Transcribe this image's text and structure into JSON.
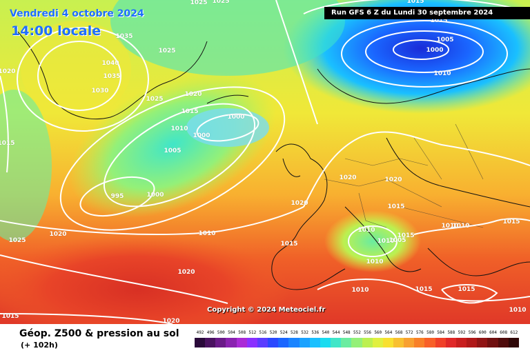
{
  "header": {
    "date": "Vendredi 4 octobre 2024",
    "time": "14:00 locale",
    "run": "Run GFS 6 Z du Lundi 30 septembre 2024"
  },
  "copyright": "Copyright © 2024 Meteociel.fr",
  "legend": {
    "title": "Géop. Z500 & pression au sol",
    "subtitle": "(+ 102h)",
    "scale_values": [
      "492",
      "496",
      "500",
      "504",
      "508",
      "512",
      "516",
      "520",
      "524",
      "528",
      "532",
      "536",
      "540",
      "544",
      "548",
      "552",
      "556",
      "560",
      "564",
      "568",
      "572",
      "576",
      "580",
      "584",
      "588",
      "592",
      "596",
      "600",
      "604",
      "608",
      "612"
    ],
    "scale_colors": [
      "#2a0a3a",
      "#4a1260",
      "#6a1a88",
      "#8a22b0",
      "#aa2ad6",
      "#8a30ff",
      "#5a3cff",
      "#2a48ff",
      "#1a66ff",
      "#1a84ff",
      "#1aa2ff",
      "#1ac0ff",
      "#1adcf0",
      "#40e6c8",
      "#6aeca0",
      "#94f078",
      "#bcf050",
      "#e0f040",
      "#f8e030",
      "#f8c030",
      "#f8a030",
      "#f88028",
      "#f86028",
      "#f04028",
      "#e02828",
      "#c81e1e",
      "#b01818",
      "#901414",
      "#701010",
      "#500c0c",
      "#300808"
    ]
  },
  "isobar_labels": [
    {
      "text": "1025"
    },
    {
      "text": "1025"
    },
    {
      "text": "1035"
    },
    {
      "text": "1040"
    },
    {
      "text": "1035"
    },
    {
      "text": "1030"
    },
    {
      "text": "1025"
    },
    {
      "text": "1025"
    },
    {
      "text": "1020"
    },
    {
      "text": "1020"
    },
    {
      "text": "1015"
    },
    {
      "text": "1010"
    },
    {
      "text": "1000"
    },
    {
      "text": "1000"
    },
    {
      "text": "1005"
    },
    {
      "text": "1015"
    },
    {
      "text": "995"
    },
    {
      "text": "1000"
    },
    {
      "text": "1020"
    },
    {
      "text": "1025"
    },
    {
      "text": "1010"
    },
    {
      "text": "1020"
    },
    {
      "text": "1015"
    },
    {
      "text": "1015"
    },
    {
      "text": "1015"
    },
    {
      "text": "1005"
    },
    {
      "text": "1000"
    },
    {
      "text": "1010"
    },
    {
      "text": "1020"
    },
    {
      "text": "1020"
    },
    {
      "text": "1015"
    },
    {
      "text": "1010"
    },
    {
      "text": "1010"
    },
    {
      "text": "1005"
    },
    {
      "text": "1010"
    },
    {
      "text": "1010"
    },
    {
      "text": "1015"
    },
    {
      "text": "1010"
    },
    {
      "text": "1015"
    },
    {
      "text": "1015"
    },
    {
      "text": "1020"
    },
    {
      "text": "1010"
    },
    {
      "text": "1015"
    },
    {
      "text": "1015"
    },
    {
      "text": "1020"
    },
    {
      "text": "1010"
    }
  ]
}
